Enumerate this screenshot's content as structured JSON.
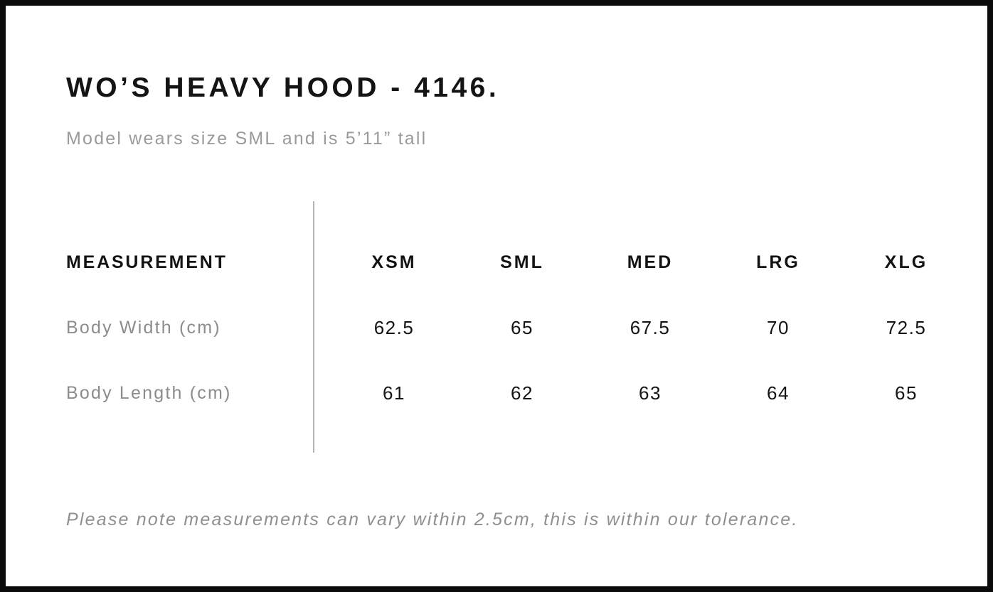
{
  "meta": {
    "background_color": "#ffffff",
    "frame_border_color": "#0b0b0b",
    "heading_text_color": "#141414",
    "muted_text_color": "#8f8f8f",
    "divider_color": "#b4b4b4"
  },
  "header": {
    "title": "WO’S HEAVY HOOD - 4146.",
    "subtitle": "Model wears size SML and is 5’11” tall"
  },
  "table": {
    "columns": [
      "MEASUREMENT",
      "XSM",
      "SML",
      "MED",
      "LRG",
      "XLG"
    ],
    "rows": [
      {
        "label": "Body Width (cm)",
        "values": [
          "62.5",
          "65",
          "67.5",
          "70",
          "72.5"
        ]
      },
      {
        "label": "Body Length (cm)",
        "values": [
          "61",
          "62",
          "63",
          "64",
          "65"
        ]
      }
    ]
  },
  "footer": {
    "note": "Please note measurements can vary within 2.5cm, this is within our tolerance."
  }
}
